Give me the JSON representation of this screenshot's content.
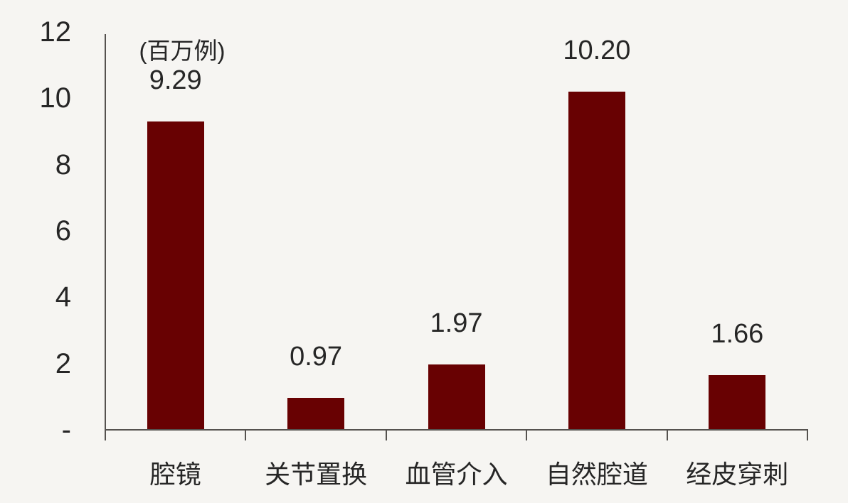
{
  "page": {
    "background": "#f6f5f2",
    "text_color": "#262626",
    "axis_color": "#55524f"
  },
  "chart_data": {
    "type": "bar",
    "categories": [
      "腔镜",
      "关节置换",
      "血管介入",
      "自然腔道",
      "经皮穿刺"
    ],
    "values": [
      9.29,
      0.97,
      1.97,
      10.2,
      1.66
    ],
    "value_labels": [
      "9.29",
      "0.97",
      "1.97",
      "10.20",
      "1.66"
    ],
    "unit_label": "(百万例)",
    "y_ticks": [
      "12",
      "10",
      "8",
      "6",
      "4",
      "2",
      "-"
    ],
    "y_tick_values": [
      12,
      10,
      8,
      6,
      4,
      2,
      0
    ],
    "ylim": [
      0,
      12
    ],
    "bar_color": "#680102",
    "grid": "off",
    "legend": "none"
  }
}
